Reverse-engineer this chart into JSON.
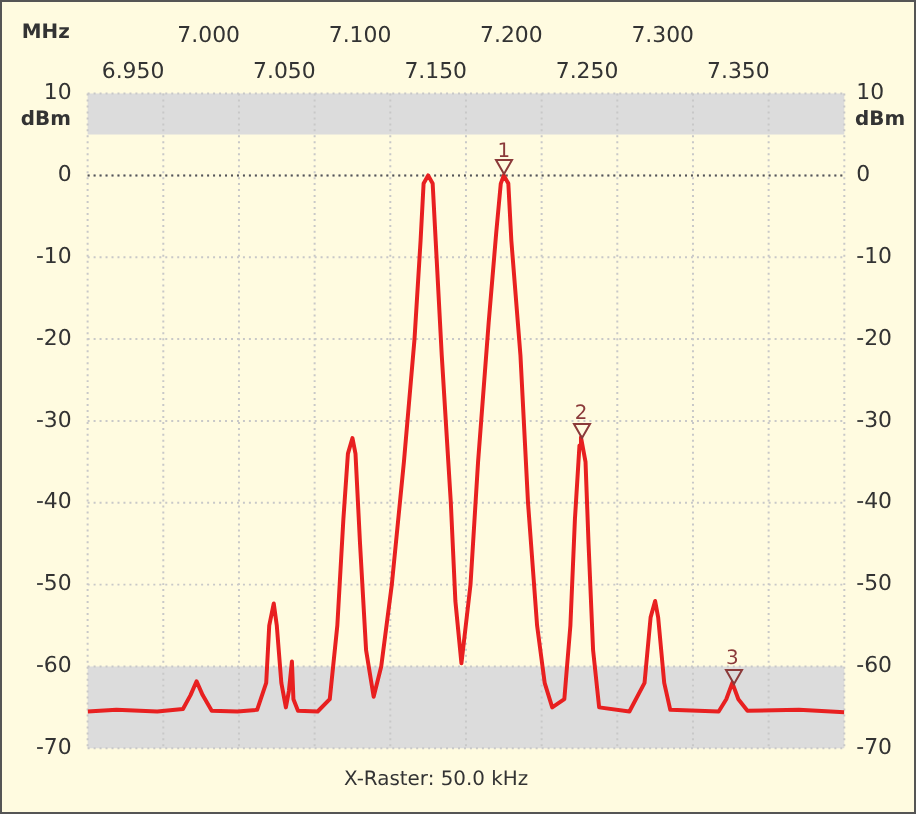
{
  "chart_data": {
    "type": "line",
    "xlabel": "MHz",
    "ylabel": "dBm",
    "y2label": "dBm",
    "annotations": [
      {
        "text": "1",
        "x": 7.195,
        "y": 0
      },
      {
        "text": "2",
        "x": 7.246,
        "y": -32
      },
      {
        "text": "3",
        "x": 7.346,
        "y": -62
      },
      "X-Raster: 50.0 kHz"
    ],
    "x": [
      6.92,
      6.939,
      6.966,
      6.983,
      6.988,
      6.992,
      6.996,
      7.002,
      7.019,
      7.032,
      7.038,
      7.04,
      7.043,
      7.045,
      7.048,
      7.051,
      7.053,
      7.055,
      7.056,
      7.059,
      7.072,
      7.08,
      7.085,
      7.089,
      7.092,
      7.095,
      7.097,
      7.1,
      7.104,
      7.109,
      7.114,
      7.121,
      7.129,
      7.136,
      7.14,
      7.142,
      7.145,
      7.148,
      7.15,
      7.154,
      7.16,
      7.163,
      7.167,
      7.173,
      7.178,
      7.185,
      7.19,
      7.193,
      7.195,
      7.198,
      7.2,
      7.206,
      7.211,
      7.217,
      7.222,
      7.227,
      7.235,
      7.239,
      7.242,
      7.245,
      7.246,
      7.249,
      7.251,
      7.254,
      7.258,
      7.278,
      7.288,
      7.292,
      7.295,
      7.297,
      7.301,
      7.305,
      7.337,
      7.342,
      7.346,
      7.35,
      7.356,
      7.39,
      7.42
    ],
    "series": [
      {
        "color": "#e82020",
        "values": [
          -65.5,
          -65.3,
          -65.5,
          -65.2,
          -63.5,
          -61.8,
          -63.5,
          -65.4,
          -65.5,
          -65.3,
          -62,
          -55,
          -52.3,
          -55,
          -62,
          -65,
          -63,
          -59.4,
          -64,
          -65.4,
          -65.5,
          -64,
          -55,
          -42,
          -34,
          -32.1,
          -34,
          -45,
          -58,
          -63.7,
          -60,
          -50,
          -35,
          -20,
          -8,
          -1,
          0,
          -1,
          -8,
          -22,
          -40,
          -52,
          -59.6,
          -50,
          -35,
          -18,
          -7,
          -1,
          0,
          -1,
          -8,
          -22,
          -40,
          -55,
          -62,
          -65,
          -64,
          -55,
          -42,
          -33,
          -32,
          -35,
          -45,
          -58,
          -65,
          -65.5,
          -62,
          -54,
          -52,
          -54,
          -62,
          -65.3,
          -65.5,
          -64,
          -62,
          -64,
          -65.4,
          -65.3,
          -65.6
        ]
      }
    ],
    "xlim": [
      6.92,
      7.42
    ],
    "xticks": [
      {
        "value": 6.92,
        "label": null
      },
      {
        "value": 6.95,
        "label": "6.950"
      },
      {
        "value": 6.97,
        "label": null
      },
      {
        "value": 7.02,
        "label": null
      },
      {
        "value": 7.05,
        "label": "7.050"
      },
      {
        "value": 7.07,
        "label": null
      },
      {
        "value": 7.12,
        "label": null
      },
      {
        "value": 7.15,
        "label": "7.150"
      },
      {
        "value": 7.17,
        "label": null
      },
      {
        "value": 7.22,
        "label": null
      },
      {
        "value": 7.25,
        "label": "7.250"
      },
      {
        "value": 7.27,
        "label": null
      },
      {
        "value": 7.32,
        "label": null
      },
      {
        "value": 7.35,
        "label": "7.350"
      },
      {
        "value": 7.37,
        "label": null
      },
      {
        "value": 7.42,
        "label": null
      }
    ],
    "x2lim": [
      6.92,
      7.42
    ],
    "x2ticks": [
      {
        "value": 7.0,
        "label": "7.000"
      },
      {
        "value": 7.1,
        "label": "7.100"
      },
      {
        "value": 7.2,
        "label": "7.200"
      },
      {
        "value": 7.3,
        "label": "7.300"
      }
    ],
    "ylim": [
      -70,
      10
    ],
    "yticks": [
      -70,
      -60,
      -50,
      -40,
      -30,
      -20,
      -10,
      0,
      10
    ],
    "y2lim": [
      -70,
      10
    ],
    "y2ticks": [
      -70,
      -60,
      -50,
      -40,
      -30,
      -20,
      -10,
      0,
      10
    ],
    "grid": true,
    "legend": false,
    "marker": "none",
    "line_style": "solid",
    "bands": [
      {
        "axis": "y",
        "from": 5,
        "to": 10,
        "color": "#dcdcdc"
      },
      {
        "axis": "y",
        "from": -70,
        "to": -60,
        "color": "#dcdcdc"
      }
    ],
    "ref_lines": [
      {
        "axis": "y",
        "value": 0,
        "color": "#555555",
        "line_style": "dotted"
      }
    ]
  }
}
